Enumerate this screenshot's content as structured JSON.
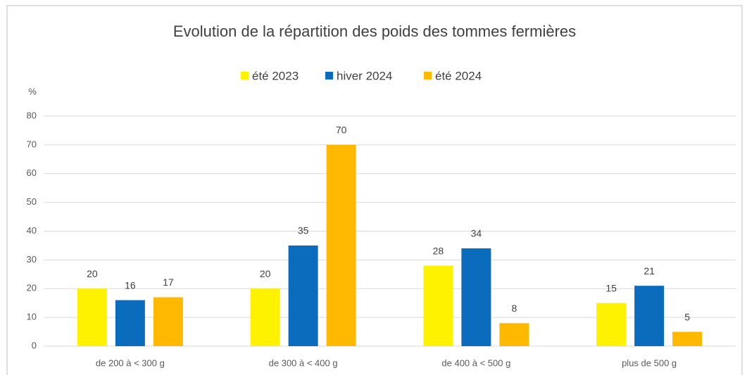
{
  "chart_data": {
    "type": "bar",
    "title": "Evolution de la répartition des poids des tommes fermières",
    "y_label": "%",
    "categories": [
      "de 200 à < 300 g",
      "de 300 à < 400 g",
      "de 400 à < 500 g",
      "plus de 500 g"
    ],
    "series": [
      {
        "name": "été 2023",
        "color": "#fff200",
        "values": [
          20,
          20,
          28,
          15
        ]
      },
      {
        "name": "hiver 2024",
        "color": "#0b6cbd",
        "values": [
          16,
          35,
          34,
          21
        ]
      },
      {
        "name": "été 2024",
        "color": "#ffb900",
        "values": [
          17,
          70,
          8,
          5
        ]
      }
    ],
    "ylim": [
      0,
      80
    ],
    "yticks": [
      0,
      10,
      20,
      30,
      40,
      50,
      60,
      70,
      80
    ],
    "grid": true,
    "legend": "top"
  }
}
